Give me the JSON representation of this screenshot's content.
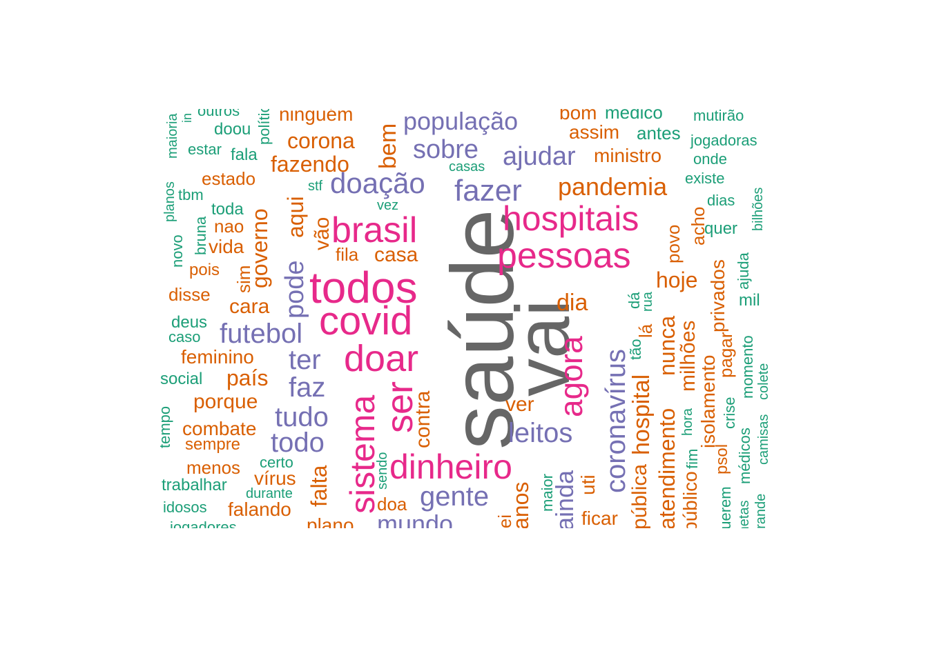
{
  "colors": {
    "gray": "#666666",
    "pink": "#e7298a",
    "purple": "#7570b3",
    "orange": "#d95f02",
    "green": "#1b9e77"
  },
  "words": [
    {
      "text": "saúde",
      "color": "gray"
    },
    {
      "text": "vai",
      "color": "gray"
    },
    {
      "text": "todos",
      "color": "pink"
    },
    {
      "text": "covid",
      "color": "pink"
    },
    {
      "text": "brasil",
      "color": "pink"
    },
    {
      "text": "hospitais",
      "color": "pink"
    },
    {
      "text": "pessoas",
      "color": "pink"
    },
    {
      "text": "doar",
      "color": "pink"
    },
    {
      "text": "ser",
      "color": "pink"
    },
    {
      "text": "sistema",
      "color": "pink"
    },
    {
      "text": "dinheiro",
      "color": "pink"
    },
    {
      "text": "agora",
      "color": "pink"
    },
    {
      "text": "população",
      "color": "purple"
    },
    {
      "text": "sobre",
      "color": "purple"
    },
    {
      "text": "ajudar",
      "color": "purple"
    },
    {
      "text": "doação",
      "color": "purple"
    },
    {
      "text": "fazer",
      "color": "purple"
    },
    {
      "text": "futebol",
      "color": "purple"
    },
    {
      "text": "ter",
      "color": "purple"
    },
    {
      "text": "faz",
      "color": "purple"
    },
    {
      "text": "tudo",
      "color": "purple"
    },
    {
      "text": "todo",
      "color": "purple"
    },
    {
      "text": "gente",
      "color": "purple"
    },
    {
      "text": "mundo",
      "color": "purple"
    },
    {
      "text": "leitos",
      "color": "purple"
    },
    {
      "text": "coronavírus",
      "color": "purple"
    },
    {
      "text": "pode",
      "color": "purple"
    },
    {
      "text": "ainda",
      "color": "purple"
    },
    {
      "text": "ninguém",
      "color": "orange"
    },
    {
      "text": "corona",
      "color": "orange"
    },
    {
      "text": "fazendo",
      "color": "orange"
    },
    {
      "text": "estado",
      "color": "orange"
    },
    {
      "text": "nao",
      "color": "orange"
    },
    {
      "text": "vida",
      "color": "orange"
    },
    {
      "text": "pois",
      "color": "orange"
    },
    {
      "text": "disse",
      "color": "orange"
    },
    {
      "text": "cara",
      "color": "orange"
    },
    {
      "text": "feminino",
      "color": "orange"
    },
    {
      "text": "país",
      "color": "orange"
    },
    {
      "text": "porque",
      "color": "orange"
    },
    {
      "text": "combate",
      "color": "orange"
    },
    {
      "text": "sempre",
      "color": "orange"
    },
    {
      "text": "menos",
      "color": "orange"
    },
    {
      "text": "vírus",
      "color": "orange"
    },
    {
      "text": "falando",
      "color": "orange"
    },
    {
      "text": "plano",
      "color": "orange"
    },
    {
      "text": "doa",
      "color": "orange"
    },
    {
      "text": "fila",
      "color": "orange"
    },
    {
      "text": "casa",
      "color": "orange"
    },
    {
      "text": "bom",
      "color": "orange"
    },
    {
      "text": "assim",
      "color": "orange"
    },
    {
      "text": "ministro",
      "color": "orange"
    },
    {
      "text": "pandemia",
      "color": "orange"
    },
    {
      "text": "hoje",
      "color": "orange"
    },
    {
      "text": "dia",
      "color": "orange"
    },
    {
      "text": "ver",
      "color": "orange"
    },
    {
      "text": "ficar",
      "color": "orange"
    },
    {
      "text": "bem",
      "color": "orange"
    },
    {
      "text": "aqui",
      "color": "orange"
    },
    {
      "text": "vão",
      "color": "orange"
    },
    {
      "text": "governo",
      "color": "orange"
    },
    {
      "text": "sim",
      "color": "orange"
    },
    {
      "text": "falta",
      "color": "orange"
    },
    {
      "text": "contra",
      "color": "orange"
    },
    {
      "text": "anos",
      "color": "orange"
    },
    {
      "text": "uti",
      "color": "orange"
    },
    {
      "text": "hospital",
      "color": "orange"
    },
    {
      "text": "pública",
      "color": "orange"
    },
    {
      "text": "nunca",
      "color": "orange"
    },
    {
      "text": "atendimento",
      "color": "orange"
    },
    {
      "text": "milhões",
      "color": "orange"
    },
    {
      "text": "público",
      "color": "orange"
    },
    {
      "text": "povo",
      "color": "orange"
    },
    {
      "text": "acho",
      "color": "orange"
    },
    {
      "text": "isolamento",
      "color": "orange"
    },
    {
      "text": "privados",
      "color": "orange"
    },
    {
      "text": "pagar",
      "color": "orange"
    },
    {
      "text": "psol",
      "color": "orange"
    },
    {
      "text": "lá",
      "color": "orange"
    },
    {
      "text": "lei",
      "color": "orange"
    },
    {
      "text": "outros",
      "color": "green"
    },
    {
      "text": "doou",
      "color": "green"
    },
    {
      "text": "estar",
      "color": "green"
    },
    {
      "text": "fala",
      "color": "green"
    },
    {
      "text": "tbm",
      "color": "green"
    },
    {
      "text": "toda",
      "color": "green"
    },
    {
      "text": "deus",
      "color": "green"
    },
    {
      "text": "caso",
      "color": "green"
    },
    {
      "text": "social",
      "color": "green"
    },
    {
      "text": "trabalhar",
      "color": "green"
    },
    {
      "text": "idosos",
      "color": "green"
    },
    {
      "text": "jogadores",
      "color": "green"
    },
    {
      "text": "certo",
      "color": "green"
    },
    {
      "text": "durante",
      "color": "green"
    },
    {
      "text": "stf",
      "color": "green"
    },
    {
      "text": "vez",
      "color": "green"
    },
    {
      "text": "casas",
      "color": "green"
    },
    {
      "text": "médico",
      "color": "green"
    },
    {
      "text": "antes",
      "color": "green"
    },
    {
      "text": "mutirão",
      "color": "green"
    },
    {
      "text": "jogadoras",
      "color": "green"
    },
    {
      "text": "onde",
      "color": "green"
    },
    {
      "text": "existe",
      "color": "green"
    },
    {
      "text": "dias",
      "color": "green"
    },
    {
      "text": "quer",
      "color": "green"
    },
    {
      "text": "mil",
      "color": "green"
    },
    {
      "text": "maioria",
      "color": "green"
    },
    {
      "text": "in",
      "color": "green"
    },
    {
      "text": "política",
      "color": "green"
    },
    {
      "text": "planos",
      "color": "green"
    },
    {
      "text": "bruna",
      "color": "green"
    },
    {
      "text": "novo",
      "color": "green"
    },
    {
      "text": "tempo",
      "color": "green"
    },
    {
      "text": "sendo",
      "color": "green"
    },
    {
      "text": "maior",
      "color": "green"
    },
    {
      "text": "dá",
      "color": "green"
    },
    {
      "text": "rua",
      "color": "green"
    },
    {
      "text": "tão",
      "color": "green"
    },
    {
      "text": "hora",
      "color": "green"
    },
    {
      "text": "fim",
      "color": "green"
    },
    {
      "text": "crise",
      "color": "green"
    },
    {
      "text": "médicos",
      "color": "green"
    },
    {
      "text": "camisas",
      "color": "green"
    },
    {
      "text": "colete",
      "color": "green"
    },
    {
      "text": "momento",
      "color": "green"
    },
    {
      "text": "ajuda",
      "color": "green"
    },
    {
      "text": "bilhões",
      "color": "green"
    },
    {
      "text": "querem",
      "color": "green"
    },
    {
      "text": "metas",
      "color": "green"
    },
    {
      "text": "grande",
      "color": "green"
    }
  ]
}
